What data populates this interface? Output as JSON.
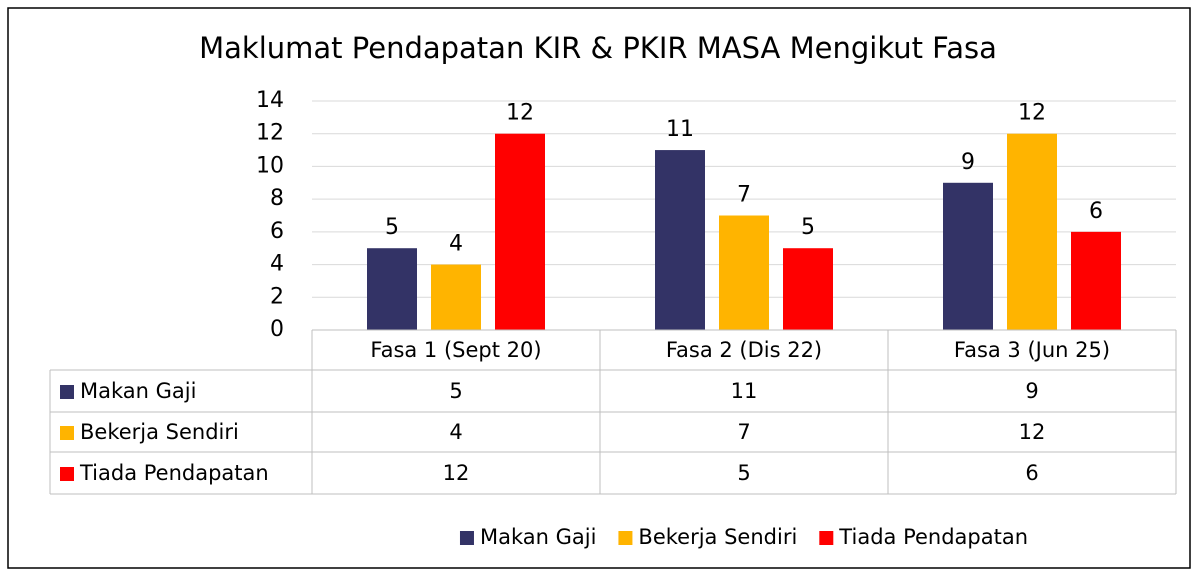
{
  "chart_data": {
    "type": "bar",
    "title": "Maklumat Pendapatan KIR & PKIR MASA Mengikut Fasa",
    "categories": [
      "Fasa 1 (Sept 20)",
      "Fasa 2 (Dis 22)",
      "Fasa 3 (Jun 25)"
    ],
    "series": [
      {
        "name": "Makan Gaji",
        "color": "#333366",
        "values": [
          5,
          11,
          9
        ]
      },
      {
        "name": "Bekerja Sendiri",
        "color": "#ffb400",
        "values": [
          4,
          7,
          12
        ]
      },
      {
        "name": "Tiada Pendapatan",
        "color": "#ff0000",
        "values": [
          12,
          5,
          6
        ]
      }
    ],
    "ylim": [
      0,
      14
    ],
    "yticks": [
      0,
      2,
      4,
      6,
      8,
      10,
      12,
      14
    ],
    "grid": true,
    "data_table": true,
    "legend": "bottom"
  }
}
